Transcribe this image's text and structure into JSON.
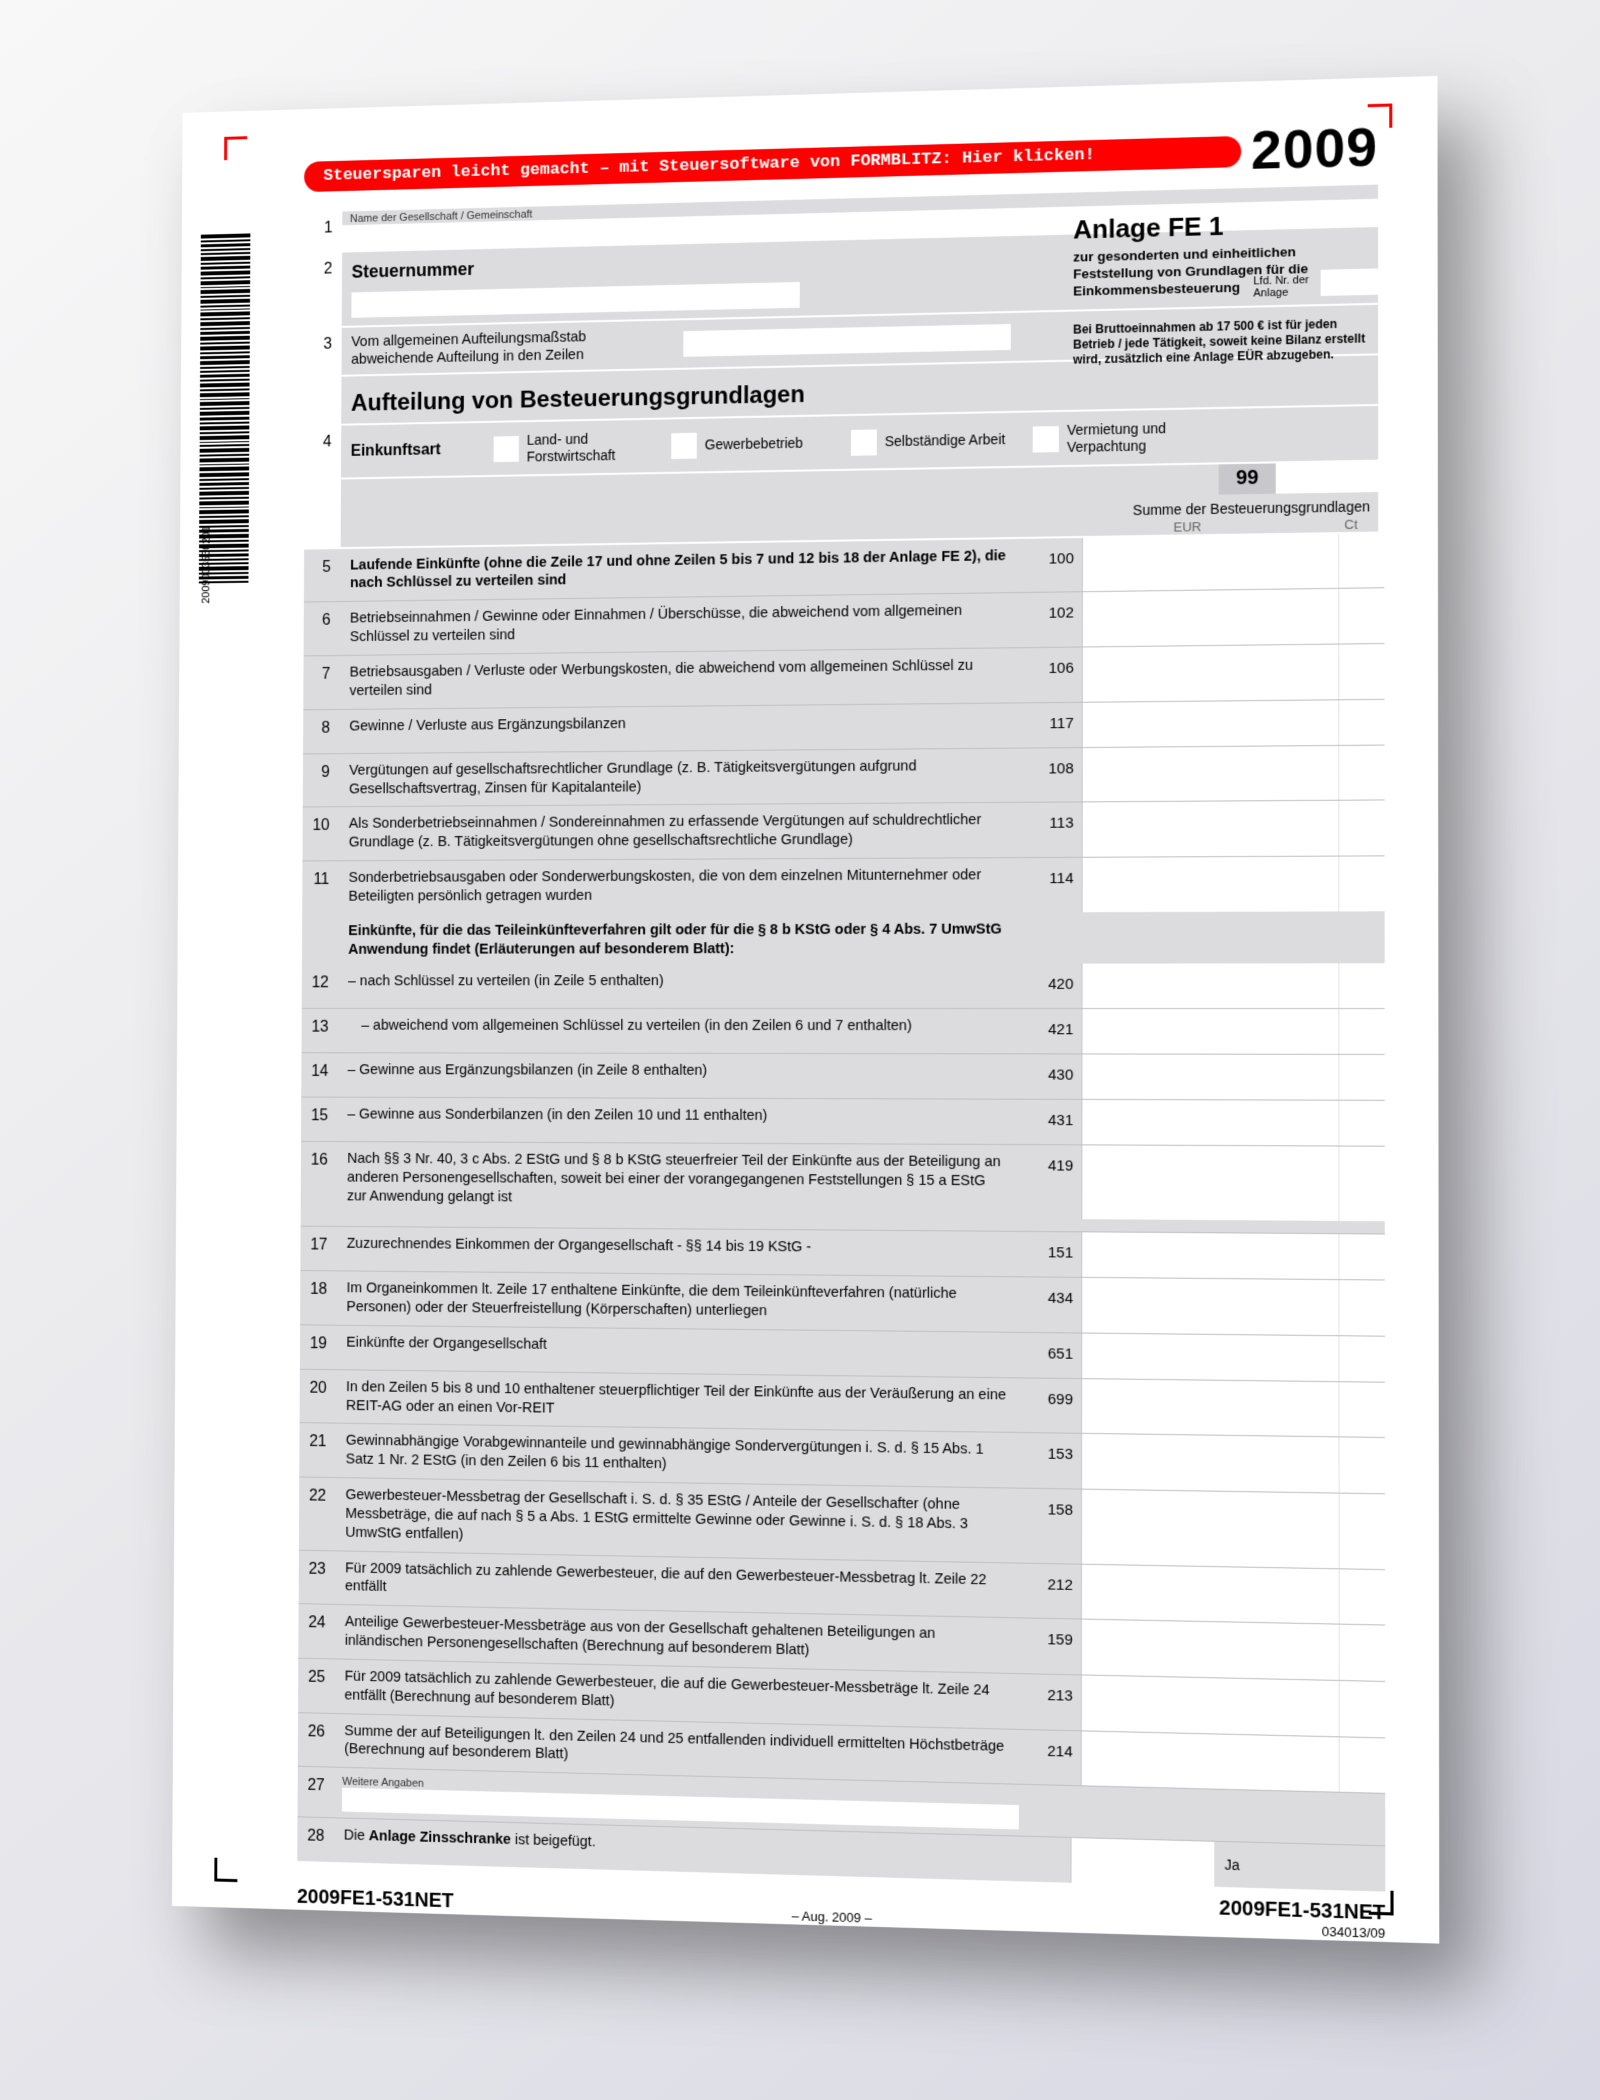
{
  "colors": {
    "accent_red": "#ff0000",
    "gray_block": "#dcdcde",
    "gray_sum": "#c8c8cc",
    "text": "#000000",
    "muted": "#666666",
    "rule": "#c0c0c4",
    "bg": "#ffffff"
  },
  "header": {
    "banner": "Steuersparen leicht gemacht – mit Steuersoftware von FORMBLITZ: Hier klicken!",
    "year": "2009"
  },
  "barcode_number": "2009003530201",
  "anlage": {
    "title": "Anlage FE 1",
    "subtitle": "zur gesonderten und einheitlichen Feststellung von Grundlagen für die Einkommensbesteuerung"
  },
  "labels": {
    "row1_small": "Name der Gesellschaft / Gemeinschaft",
    "row2": "Steuernummer",
    "lfd": "Lfd. Nr. der Anlage",
    "row3": "Vom allgemeinen Aufteilungsmaßstab abweichende Aufteilung in den Zeilen",
    "brutto": "Bei Bruttoeinnahmen ab 17 500 € ist für jeden Betrieb / jede Tätigkeit, soweit keine Bilanz erstellt wird, zusätzlich eine Anlage EÜR abzugeben.",
    "big_title": "Aufteilung von Besteuerungsgrundlagen",
    "row4_label": "Einkunftsart",
    "opts": [
      "Land- und Forstwirtschaft",
      "Gewerbebetrieb",
      "Selbständige Arbeit",
      "Vermietung und Verpachtung"
    ],
    "tag99": "99",
    "sum_header": "Summe der Besteuerungsgrundlagen",
    "eur": "EUR",
    "ct": "Ct",
    "weitere": "Weitere Angaben",
    "ja": "Ja",
    "row28": "Die Anlage Zinsschranke ist beigefügt."
  },
  "rows": [
    {
      "n": "5",
      "code": "100",
      "text": "Laufende Einkünfte (ohne die Zeile 17 und ohne Zeilen 5 bis 7 und 12 bis 18 der Anlage FE 2), die nach Schlüssel zu verteilen sind",
      "bold": true
    },
    {
      "n": "6",
      "code": "102",
      "text": "Betriebseinnahmen / Gewinne oder Einnahmen / Überschüsse, die abweichend vom allgemeinen Schlüssel zu verteilen sind"
    },
    {
      "n": "7",
      "code": "106",
      "text": "Betriebsausgaben / Verluste oder Werbungskosten, die abweichend vom allgemeinen Schlüssel zu verteilen sind"
    },
    {
      "n": "8",
      "code": "117",
      "text": "Gewinne / Verluste aus Ergänzungsbilanzen"
    },
    {
      "n": "9",
      "code": "108",
      "text": "Vergütungen auf gesellschaftsrechtlicher Grundlage (z. B. Tätigkeitsvergütungen aufgrund Gesellschaftsvertrag, Zinsen für Kapitalanteile)"
    },
    {
      "n": "10",
      "code": "113",
      "text": "Als Sonderbetriebseinnahmen / Sondereinnahmen zu erfassende Vergütungen auf schuldrechtlicher Grundlage (z. B. Tätigkeitsvergütungen ohne gesellschaftsrechtliche Grundlage)"
    },
    {
      "n": "11",
      "code": "114",
      "text": "Sonderbetriebsausgaben oder Sonderwerbungskosten, die von dem einzelnen Mitunternehmer oder Beteiligten persönlich getragen wurden"
    }
  ],
  "section2_head": "Einkünfte, für die das Teileinkünfteverfahren gilt oder für die § 8 b KStG oder § 4 Abs. 7 UmwStG Anwendung findet (Erläuterungen auf besonderem Blatt):",
  "rows2": [
    {
      "n": "12",
      "code": "420",
      "text": "– nach Schlüssel zu verteilen (in Zeile 5 enthalten)"
    },
    {
      "n": "13",
      "code": "421",
      "text": "– abweichend vom allgemeinen Schlüssel zu verteilen (in den Zeilen 6 und 7 enthalten)",
      "indent": true
    },
    {
      "n": "14",
      "code": "430",
      "text": "– Gewinne aus Ergänzungsbilanzen (in Zeile 8 enthalten)"
    },
    {
      "n": "15",
      "code": "431",
      "text": "– Gewinne aus Sonderbilanzen (in den Zeilen 10 und 11 enthalten)"
    },
    {
      "n": "16",
      "code": "419",
      "text": "Nach §§ 3 Nr. 40, 3 c Abs. 2 EStG und § 8 b KStG steuerfreier Teil der Einkünfte aus der Beteiligung an anderen Personengesellschaften, soweit bei einer der vorangegangenen Feststellungen § 15 a EStG zur Anwendung gelangt ist"
    }
  ],
  "rows3": [
    {
      "n": "17",
      "code": "151",
      "text": "Zuzurechnendes Einkommen der Organgesellschaft - §§ 14 bis 19 KStG -"
    },
    {
      "n": "18",
      "code": "434",
      "text": "Im Organeinkommen lt. Zeile 17 enthaltene Einkünfte, die dem Teileinkünfteverfahren (natürliche Personen) oder der Steuerfreistellung (Körperschaften) unterliegen"
    },
    {
      "n": "19",
      "code": "651",
      "text": "Einkünfte der Organgesellschaft"
    },
    {
      "n": "20",
      "code": "699",
      "text": "In den Zeilen 5 bis 8 und 10 enthaltener steuerpflichtiger Teil der Einkünfte aus der Veräußerung an eine REIT-AG oder an einen Vor-REIT"
    },
    {
      "n": "21",
      "code": "153",
      "text": "Gewinnabhängige Vorabgewinnanteile und gewinnabhängige Sondervergütungen i. S. d. § 15 Abs. 1 Satz 1 Nr. 2 EStG (in den Zeilen 6 bis 11 enthalten)"
    },
    {
      "n": "22",
      "code": "158",
      "text": "Gewerbesteuer-Messbetrag der Gesellschaft i. S. d. § 35 EStG / Anteile der Gesellschafter (ohne Messbeträge, die auf nach § 5 a Abs. 1 EStG ermittelte Gewinne oder Gewinne i. S. d. § 18 Abs. 3 UmwStG entfallen)"
    },
    {
      "n": "23",
      "code": "212",
      "text": "Für 2009 tatsächlich zu zahlende Gewerbesteuer, die auf den Gewerbesteuer-Messbetrag lt. Zeile 22 entfällt"
    },
    {
      "n": "24",
      "code": "159",
      "text": "Anteilige Gewerbesteuer-Messbeträge aus von der Gesellschaft gehaltenen Beteiligungen an inländischen Personengesellschaften (Berechnung auf besonderem Blatt)"
    },
    {
      "n": "25",
      "code": "213",
      "text": "Für 2009 tatsächlich zu zahlende Gewerbesteuer, die auf die Gewerbesteuer-Messbeträge lt. Zeile 24 entfällt (Berechnung auf besonderem Blatt)"
    },
    {
      "n": "26",
      "code": "214",
      "text": "Summe der auf Beteiligungen lt. den Zeilen 24 und 25 entfallenden individuell ermittelten Höchstbeträge (Berechnung auf besonderem Blatt)"
    }
  ],
  "footer": {
    "formcode": "2009FE1-531NET",
    "date": "– Aug. 2009 –",
    "subcode": "034013/09"
  }
}
